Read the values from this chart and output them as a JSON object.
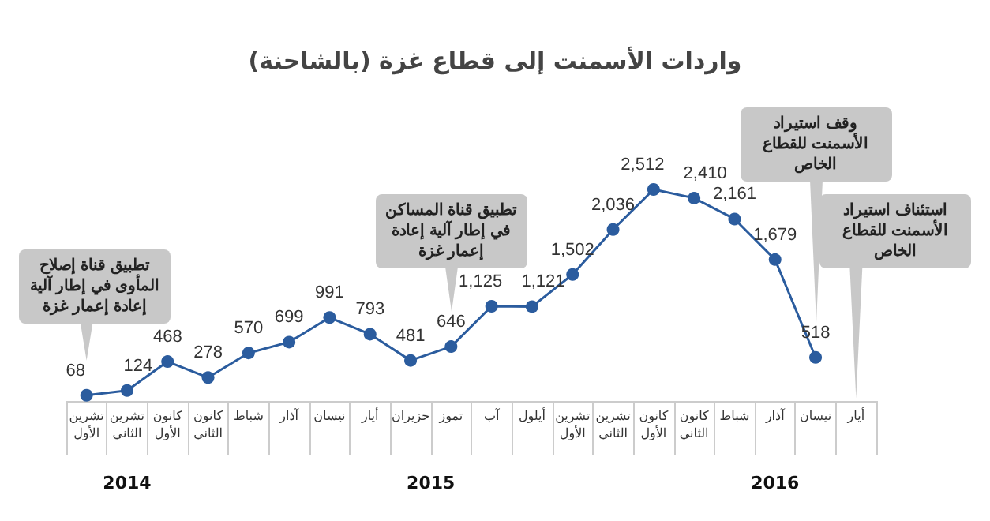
{
  "chart_data": {
    "type": "line",
    "title": "واردات الأسمنت إلى قطاع غزة (بالشاحنة)",
    "categories": [
      "تشرين الأول",
      "تشرين الثاني",
      "كانون الأول",
      "كانون الثاني",
      "شباط",
      "آذار",
      "نيسان",
      "أيار",
      "حزيران",
      "تموز",
      "آب",
      "أيلول",
      "تشرين الأول",
      "تشرين الثاني",
      "كانون الأول",
      "كانون الثاني",
      "شباط",
      "آذار",
      "نيسان",
      "أيار"
    ],
    "series": [
      {
        "color": "#2b5c9e",
        "values": [
          68,
          124,
          468,
          278,
          570,
          699,
          991,
          793,
          481,
          646,
          1125,
          1121,
          1502,
          2036,
          2512,
          2410,
          2161,
          1679,
          518,
          null
        ],
        "value_labels": [
          "68",
          "124",
          "468",
          "278",
          "570",
          "699",
          "991",
          "793",
          "481",
          "646",
          "1,125",
          "1,121",
          "1,502",
          "2,036",
          "2,512",
          "2,410",
          "2,161",
          "1,679",
          "518",
          null
        ]
      }
    ],
    "marker": "circle",
    "line_style": "solid",
    "grid": false,
    "annotations": [
      "تطبيق قناة إصلاح المأوى في إطار آلية إعادة إعمار غزة",
      "تطبيق قناة المساكن في إطار آلية إعادة إعمار غزة",
      "وقف استيراد الأسمنت للقطاع الخاص",
      "استئناف استيراد الأسمنت للقطاع الخاص",
      "2014",
      "2015",
      "2016"
    ]
  }
}
